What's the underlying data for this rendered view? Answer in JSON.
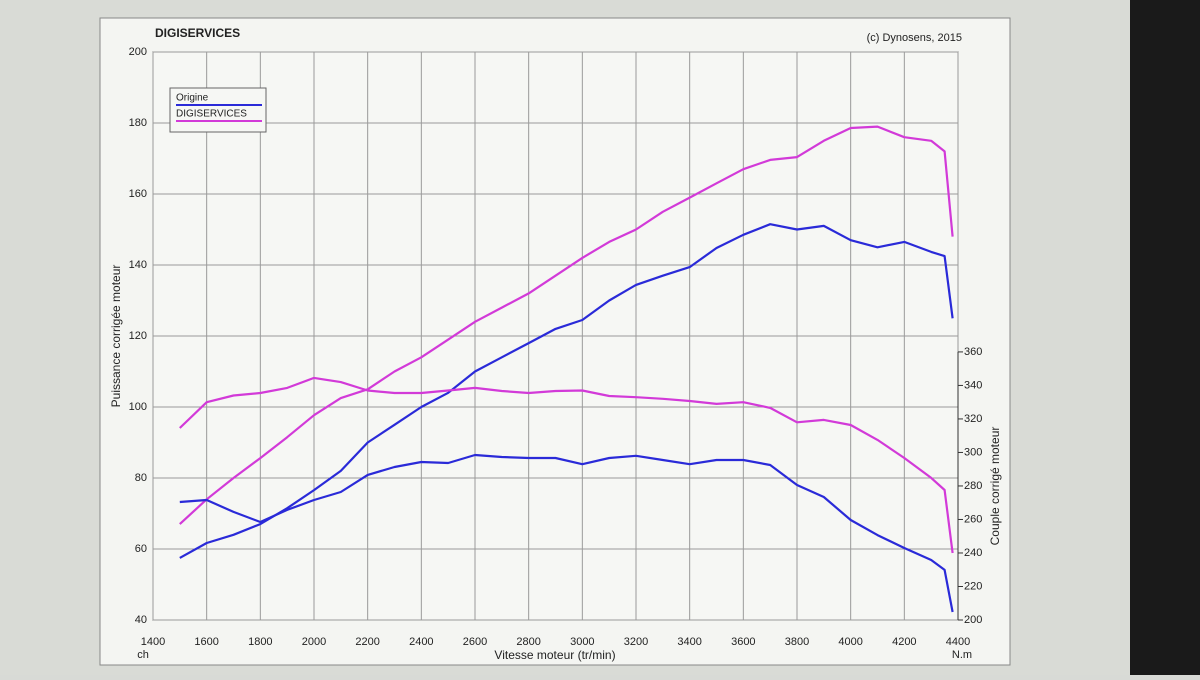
{
  "chart_data": {
    "type": "line",
    "title": "DIGISERVICES",
    "subtitle": "(c) Dynosens, 2015",
    "xlabel": "Vitesse moteur (tr/min)",
    "ylabel": "Puissance corrigée moteur",
    "y2label": "Couple corrigé moteur",
    "yunit": "ch",
    "y2unit": "N.m",
    "x": [
      1500,
      1600,
      1700,
      1800,
      1900,
      2000,
      2100,
      2200,
      2300,
      2400,
      2500,
      2600,
      2700,
      2800,
      2900,
      3000,
      3100,
      3200,
      3300,
      3400,
      3500,
      3600,
      3700,
      3800,
      3900,
      4000,
      4100,
      4200,
      4300,
      4350,
      4380
    ],
    "series": [
      {
        "name": "Origine",
        "color": "#2a2ad8",
        "values": [
          57.5,
          61.7,
          64,
          67,
          71.5,
          76.6,
          82,
          90,
          95,
          100,
          104,
          110,
          114,
          118,
          122,
          124.5,
          130,
          134.4,
          137,
          139.4,
          144.8,
          148.5,
          151.5,
          150,
          151,
          147,
          145,
          146.5,
          143.7,
          142.5,
          125
        ]
      },
      {
        "name": "DIGISERVICES",
        "color": "#d23ad8",
        "values": [
          67,
          74,
          80,
          85.6,
          91.5,
          97.7,
          102.5,
          105,
          110,
          114,
          119,
          124,
          128,
          132,
          137,
          142,
          146.5,
          150,
          155,
          159,
          163,
          167,
          169.6,
          170.4,
          175,
          178.6,
          179,
          176,
          175,
          172,
          148
        ]
      },
      {
        "name": "Origine",
        "color": "#2a2ad8",
        "axis": "y2",
        "values": [
          270.4,
          271.6,
          264.5,
          258.5,
          265.7,
          271.6,
          276.4,
          286.6,
          291.3,
          294.3,
          293.7,
          298.5,
          297.3,
          296.7,
          296.7,
          293,
          296.7,
          298,
          295.5,
          293,
          295.5,
          295.5,
          292.5,
          280.6,
          273.4,
          259.7,
          250.7,
          243,
          235.8,
          229.9,
          204.8
        ]
      },
      {
        "name": "DIGISERVICES",
        "color": "#d23ad8",
        "axis": "y2",
        "values": [
          314.6,
          330,
          334,
          335.5,
          338.5,
          344.5,
          342,
          337,
          335.5,
          335.5,
          337,
          338.5,
          336.7,
          335.5,
          336.7,
          337,
          333.7,
          333,
          332,
          330.7,
          329,
          330,
          326.6,
          318,
          319.4,
          316.4,
          307.5,
          296.7,
          284.8,
          277.6,
          240
        ]
      }
    ],
    "xlim": [
      1400,
      4400
    ],
    "xticks": [
      1400,
      1600,
      1800,
      2000,
      2200,
      2400,
      2600,
      2800,
      3000,
      3200,
      3400,
      3600,
      3800,
      4000,
      4200,
      4400
    ],
    "ylim": [
      40,
      200
    ],
    "yticks": [
      40,
      60,
      80,
      100,
      120,
      140,
      160,
      180,
      200
    ],
    "y2lim": [
      200,
      539
    ],
    "y2ticks": [
      200,
      220,
      240,
      260,
      280,
      300,
      320,
      340,
      360
    ],
    "grid": true,
    "legend": "upper left"
  }
}
